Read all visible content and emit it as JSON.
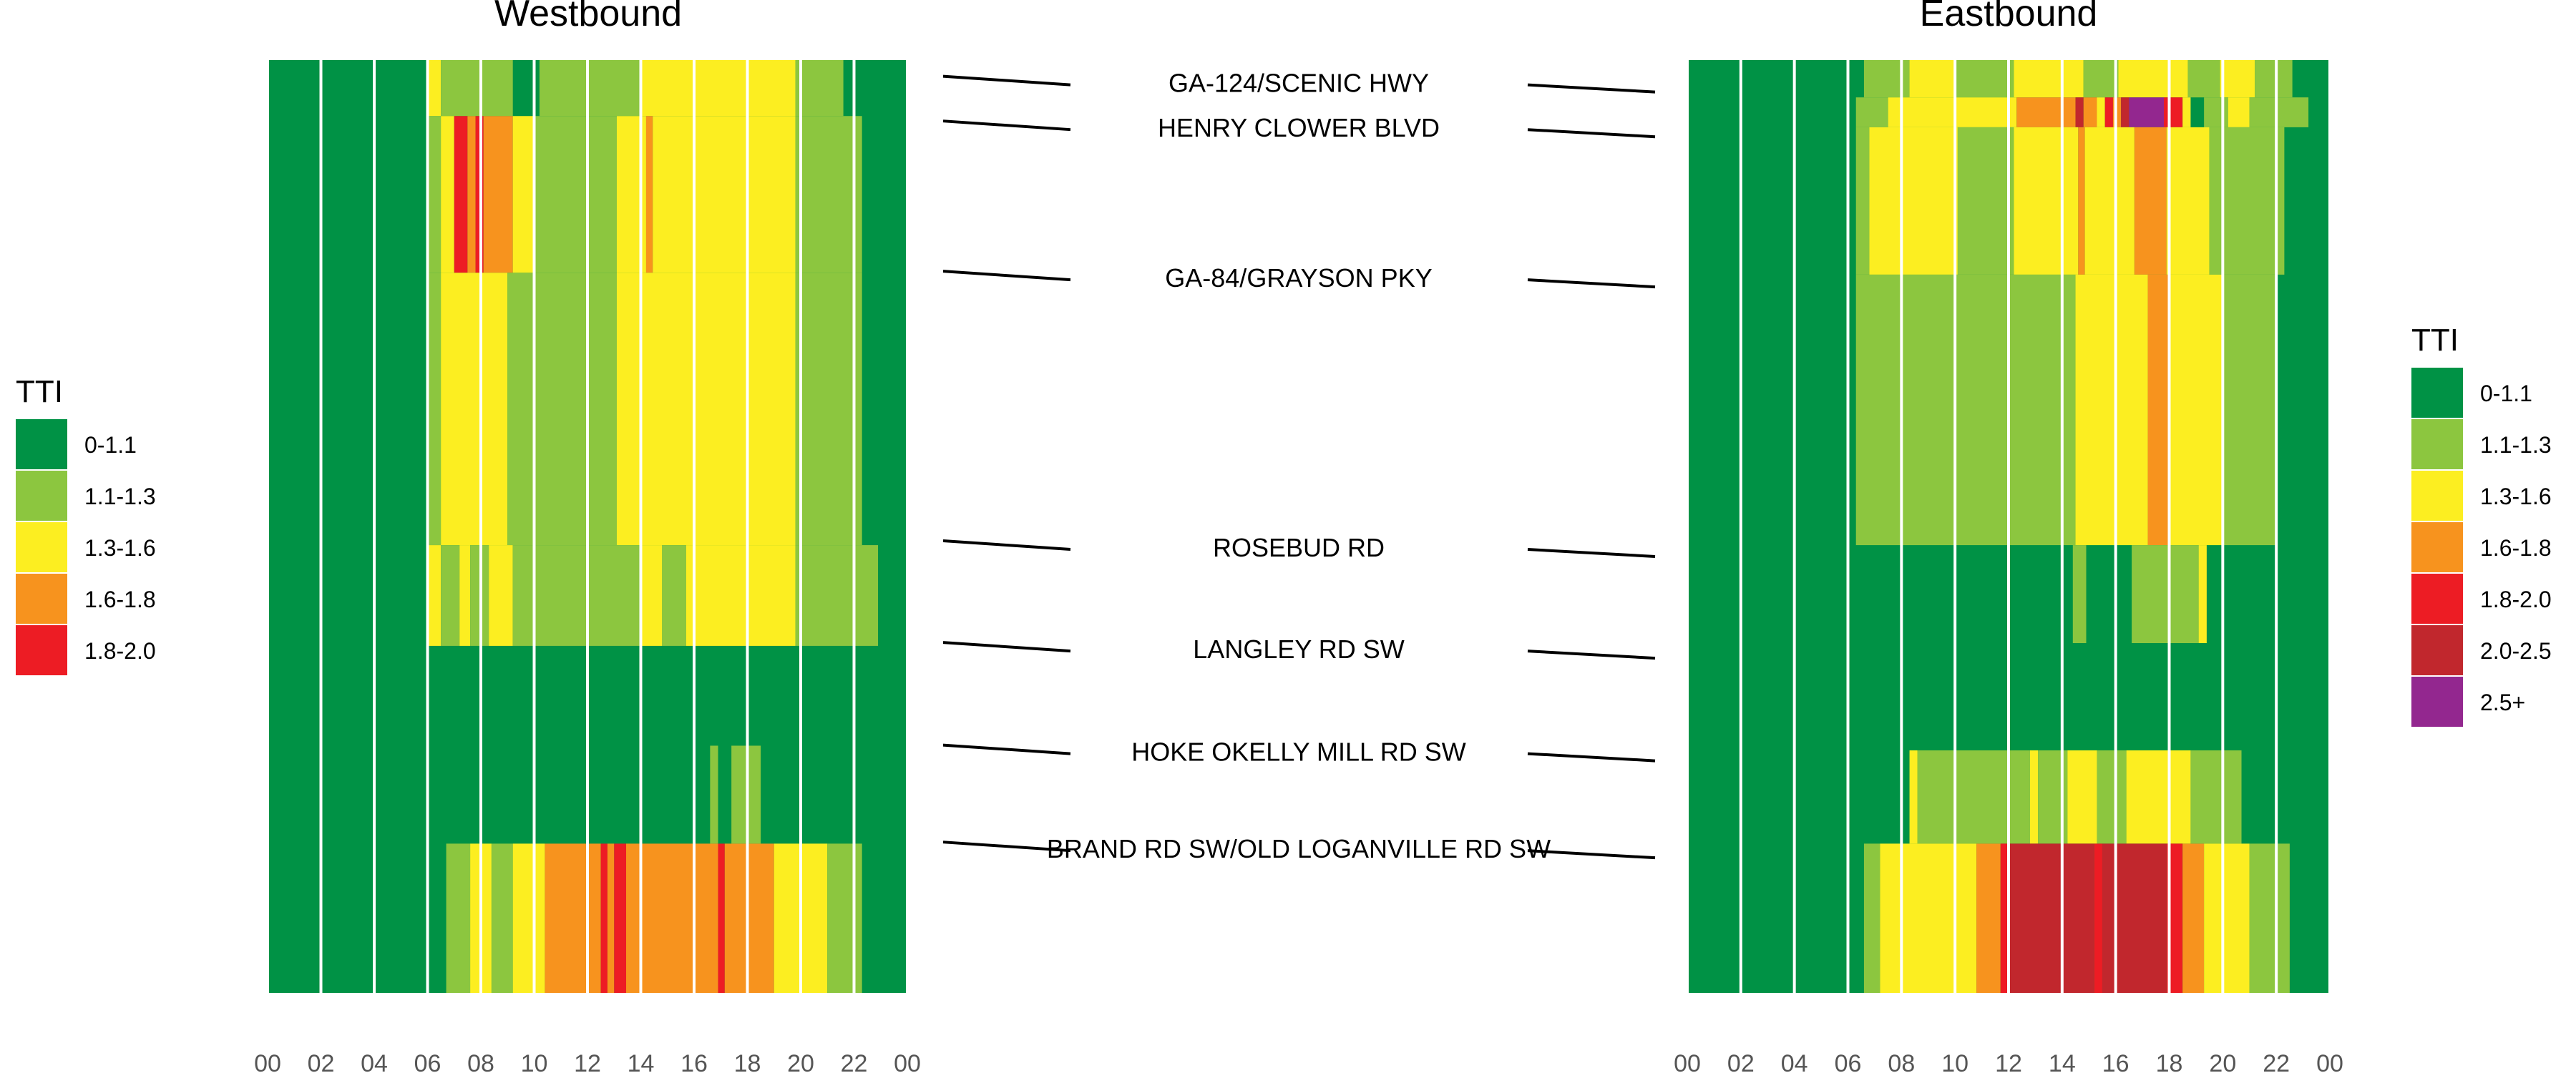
{
  "colors": {
    "0-1.1": "#009245",
    "1.1-1.3": "#8CC63F",
    "1.3-1.6": "#FCEE21",
    "1.6-1.8": "#F7931E",
    "1.8-2.0": "#ED1C24",
    "2.0-2.5": "#C1272D",
    "2.5+": "#93278F",
    "hour_line": "#ffffff",
    "leader": "#000000"
  },
  "chart_data": [
    {
      "type": "heatmap",
      "title": "Westbound",
      "legend_title": "TTI",
      "legend_items": [
        "0-1.1",
        "1.1-1.3",
        "1.3-1.6",
        "1.6-1.8",
        "1.8-2.0"
      ],
      "legend_placement": "left",
      "x_ticks": [
        "00",
        "02",
        "04",
        "06",
        "08",
        "10",
        "12",
        "14",
        "16",
        "18",
        "20",
        "22",
        "00"
      ],
      "xlim": [
        0,
        24
      ],
      "cells": [
        {
          "h0": 6.05,
          "h1": 6.5,
          "y0": 0,
          "y1": 6,
          "c": "1.3-1.6"
        },
        {
          "h0": 6.5,
          "h1": 9.2,
          "y0": 0,
          "y1": 6,
          "c": "1.1-1.3"
        },
        {
          "h0": 10.2,
          "h1": 14.0,
          "y0": 0,
          "y1": 6,
          "c": "1.1-1.3"
        },
        {
          "h0": 14.0,
          "h1": 19.8,
          "y0": 0,
          "y1": 6,
          "c": "1.3-1.6"
        },
        {
          "h0": 19.8,
          "h1": 21.6,
          "y0": 0,
          "y1": 6,
          "c": "1.1-1.3"
        },
        {
          "h0": 6.0,
          "h1": 6.5,
          "y0": 6,
          "y1": 22.8,
          "c": "1.1-1.3"
        },
        {
          "h0": 6.5,
          "h1": 7.0,
          "y0": 6,
          "y1": 22.8,
          "c": "1.3-1.6"
        },
        {
          "h0": 7.0,
          "h1": 7.5,
          "y0": 6,
          "y1": 22.8,
          "c": "1.8-2.0"
        },
        {
          "h0": 7.5,
          "h1": 7.8,
          "y0": 6,
          "y1": 22.8,
          "c": "1.6-1.8"
        },
        {
          "h0": 7.8,
          "h1": 8.1,
          "y0": 6,
          "y1": 22.8,
          "c": "1.8-2.0"
        },
        {
          "h0": 8.1,
          "h1": 9.2,
          "y0": 6,
          "y1": 22.8,
          "c": "1.6-1.8"
        },
        {
          "h0": 9.2,
          "h1": 10.0,
          "y0": 6,
          "y1": 22.8,
          "c": "1.3-1.6"
        },
        {
          "h0": 10.0,
          "h1": 13.1,
          "y0": 6,
          "y1": 22.8,
          "c": "1.1-1.3"
        },
        {
          "h0": 13.1,
          "h1": 14.2,
          "y0": 6,
          "y1": 22.8,
          "c": "1.3-1.6"
        },
        {
          "h0": 14.2,
          "h1": 14.45,
          "y0": 6,
          "y1": 22.8,
          "c": "1.6-1.8"
        },
        {
          "h0": 14.45,
          "h1": 19.8,
          "y0": 6,
          "y1": 22.8,
          "c": "1.3-1.6"
        },
        {
          "h0": 19.8,
          "h1": 22.3,
          "y0": 6,
          "y1": 22.8,
          "c": "1.1-1.3"
        },
        {
          "h0": 6.0,
          "h1": 6.5,
          "y0": 22.8,
          "y1": 52,
          "c": "1.1-1.3"
        },
        {
          "h0": 6.5,
          "h1": 9.0,
          "y0": 22.8,
          "y1": 52,
          "c": "1.3-1.6"
        },
        {
          "h0": 9.0,
          "h1": 13.1,
          "y0": 22.8,
          "y1": 52,
          "c": "1.1-1.3"
        },
        {
          "h0": 13.1,
          "h1": 19.8,
          "y0": 22.8,
          "y1": 52,
          "c": "1.3-1.6"
        },
        {
          "h0": 19.8,
          "h1": 22.3,
          "y0": 22.8,
          "y1": 52,
          "c": "1.1-1.3"
        },
        {
          "h0": 6.0,
          "h1": 6.5,
          "y0": 52,
          "y1": 62.8,
          "c": "1.3-1.6"
        },
        {
          "h0": 6.5,
          "h1": 7.2,
          "y0": 52,
          "y1": 62.8,
          "c": "1.1-1.3"
        },
        {
          "h0": 7.2,
          "h1": 7.6,
          "y0": 52,
          "y1": 62.8,
          "c": "1.3-1.6"
        },
        {
          "h0": 7.6,
          "h1": 8.3,
          "y0": 52,
          "y1": 62.8,
          "c": "1.1-1.3"
        },
        {
          "h0": 8.3,
          "h1": 9.2,
          "y0": 52,
          "y1": 62.8,
          "c": "1.3-1.6"
        },
        {
          "h0": 9.2,
          "h1": 14.0,
          "y0": 52,
          "y1": 62.8,
          "c": "1.1-1.3"
        },
        {
          "h0": 14.0,
          "h1": 14.8,
          "y0": 52,
          "y1": 62.8,
          "c": "1.3-1.6"
        },
        {
          "h0": 14.8,
          "h1": 15.7,
          "y0": 52,
          "y1": 62.8,
          "c": "1.1-1.3"
        },
        {
          "h0": 15.7,
          "h1": 19.8,
          "y0": 52,
          "y1": 62.8,
          "c": "1.3-1.6"
        },
        {
          "h0": 19.8,
          "h1": 22.9,
          "y0": 52,
          "y1": 62.8,
          "c": "1.1-1.3"
        },
        {
          "h0": 16.6,
          "h1": 16.9,
          "y0": 73.5,
          "y1": 84,
          "c": "1.1-1.3"
        },
        {
          "h0": 17.4,
          "h1": 18.5,
          "y0": 73.5,
          "y1": 84,
          "c": "1.1-1.3"
        },
        {
          "h0": 6.7,
          "h1": 7.6,
          "y0": 84,
          "y1": 100,
          "c": "1.1-1.3"
        },
        {
          "h0": 7.6,
          "h1": 8.4,
          "y0": 84,
          "y1": 100,
          "c": "1.3-1.6"
        },
        {
          "h0": 8.4,
          "h1": 9.2,
          "y0": 84,
          "y1": 100,
          "c": "1.1-1.3"
        },
        {
          "h0": 9.2,
          "h1": 10.4,
          "y0": 84,
          "y1": 100,
          "c": "1.3-1.6"
        },
        {
          "h0": 10.4,
          "h1": 12.5,
          "y0": 84,
          "y1": 100,
          "c": "1.6-1.8"
        },
        {
          "h0": 12.5,
          "h1": 12.75,
          "y0": 84,
          "y1": 100,
          "c": "1.8-2.0"
        },
        {
          "h0": 12.75,
          "h1": 13.0,
          "y0": 84,
          "y1": 100,
          "c": "1.6-1.8"
        },
        {
          "h0": 13.0,
          "h1": 13.45,
          "y0": 84,
          "y1": 100,
          "c": "1.8-2.0"
        },
        {
          "h0": 13.45,
          "h1": 16.9,
          "y0": 84,
          "y1": 100,
          "c": "1.6-1.8"
        },
        {
          "h0": 16.9,
          "h1": 17.15,
          "y0": 84,
          "y1": 100,
          "c": "1.8-2.0"
        },
        {
          "h0": 17.15,
          "h1": 19.0,
          "y0": 84,
          "y1": 100,
          "c": "1.6-1.8"
        },
        {
          "h0": 19.0,
          "h1": 21.0,
          "y0": 84,
          "y1": 100,
          "c": "1.3-1.6"
        },
        {
          "h0": 21.0,
          "h1": 22.3,
          "y0": 84,
          "y1": 100,
          "c": "1.1-1.3"
        }
      ]
    },
    {
      "type": "heatmap",
      "title": "Eastbound",
      "legend_title": "TTI",
      "legend_items": [
        "0-1.1",
        "1.1-1.3",
        "1.3-1.6",
        "1.6-1.8",
        "1.8-2.0",
        "2.0-2.5",
        "2.5+"
      ],
      "legend_placement": "right",
      "x_ticks": [
        "00",
        "02",
        "04",
        "06",
        "08",
        "10",
        "12",
        "14",
        "16",
        "18",
        "20",
        "22",
        "00"
      ],
      "xlim": [
        0,
        24
      ],
      "cells": [
        {
          "h0": 6.6,
          "h1": 8.3,
          "y0": 0,
          "y1": 4,
          "c": "1.1-1.3"
        },
        {
          "h0": 8.3,
          "h1": 10.0,
          "y0": 0,
          "y1": 4,
          "c": "1.3-1.6"
        },
        {
          "h0": 10.0,
          "h1": 12.2,
          "y0": 0,
          "y1": 4,
          "c": "1.1-1.3"
        },
        {
          "h0": 12.2,
          "h1": 14.8,
          "y0": 0,
          "y1": 4,
          "c": "1.3-1.6"
        },
        {
          "h0": 14.8,
          "h1": 16.1,
          "y0": 0,
          "y1": 4,
          "c": "1.1-1.3"
        },
        {
          "h0": 16.1,
          "h1": 18.7,
          "y0": 0,
          "y1": 4,
          "c": "1.3-1.6"
        },
        {
          "h0": 18.7,
          "h1": 19.9,
          "y0": 0,
          "y1": 4,
          "c": "1.1-1.3"
        },
        {
          "h0": 19.9,
          "h1": 21.2,
          "y0": 0,
          "y1": 4,
          "c": "1.3-1.6"
        },
        {
          "h0": 21.2,
          "h1": 22.6,
          "y0": 0,
          "y1": 4,
          "c": "1.1-1.3"
        },
        {
          "h0": 6.3,
          "h1": 7.5,
          "y0": 4,
          "y1": 7.2,
          "c": "1.1-1.3"
        },
        {
          "h0": 7.5,
          "h1": 12.3,
          "y0": 4,
          "y1": 7.2,
          "c": "1.3-1.6"
        },
        {
          "h0": 12.3,
          "h1": 14.5,
          "y0": 4,
          "y1": 7.2,
          "c": "1.6-1.8"
        },
        {
          "h0": 14.5,
          "h1": 14.8,
          "y0": 4,
          "y1": 7.2,
          "c": "2.0-2.5"
        },
        {
          "h0": 14.8,
          "h1": 15.3,
          "y0": 4,
          "y1": 7.2,
          "c": "1.6-1.8"
        },
        {
          "h0": 15.3,
          "h1": 15.6,
          "y0": 4,
          "y1": 7.2,
          "c": "1.3-1.6"
        },
        {
          "h0": 15.6,
          "h1": 15.9,
          "y0": 4,
          "y1": 7.2,
          "c": "1.8-2.0"
        },
        {
          "h0": 15.9,
          "h1": 16.2,
          "y0": 4,
          "y1": 7.2,
          "c": "1.6-1.8"
        },
        {
          "h0": 16.2,
          "h1": 16.5,
          "y0": 4,
          "y1": 7.2,
          "c": "2.0-2.5"
        },
        {
          "h0": 16.5,
          "h1": 17.8,
          "y0": 4,
          "y1": 7.2,
          "c": "2.5+"
        },
        {
          "h0": 17.8,
          "h1": 18.5,
          "y0": 4,
          "y1": 7.2,
          "c": "1.8-2.0"
        },
        {
          "h0": 18.5,
          "h1": 18.8,
          "y0": 4,
          "y1": 7.2,
          "c": "1.3-1.6"
        },
        {
          "h0": 19.3,
          "h1": 20.2,
          "y0": 4,
          "y1": 7.2,
          "c": "1.1-1.3"
        },
        {
          "h0": 20.2,
          "h1": 21.0,
          "y0": 4,
          "y1": 7.2,
          "c": "1.3-1.6"
        },
        {
          "h0": 21.0,
          "h1": 23.2,
          "y0": 4,
          "y1": 7.2,
          "c": "1.1-1.3"
        },
        {
          "h0": 6.3,
          "h1": 6.8,
          "y0": 7.2,
          "y1": 23,
          "c": "1.1-1.3"
        },
        {
          "h0": 6.8,
          "h1": 10.1,
          "y0": 7.2,
          "y1": 23,
          "c": "1.3-1.6"
        },
        {
          "h0": 10.1,
          "h1": 12.2,
          "y0": 7.2,
          "y1": 23,
          "c": "1.1-1.3"
        },
        {
          "h0": 12.2,
          "h1": 14.6,
          "y0": 7.2,
          "y1": 23,
          "c": "1.3-1.6"
        },
        {
          "h0": 14.6,
          "h1": 14.85,
          "y0": 7.2,
          "y1": 23,
          "c": "1.6-1.8"
        },
        {
          "h0": 14.85,
          "h1": 16.7,
          "y0": 7.2,
          "y1": 23,
          "c": "1.3-1.6"
        },
        {
          "h0": 16.7,
          "h1": 17.9,
          "y0": 7.2,
          "y1": 23,
          "c": "1.6-1.8"
        },
        {
          "h0": 17.9,
          "h1": 19.5,
          "y0": 7.2,
          "y1": 23,
          "c": "1.3-1.6"
        },
        {
          "h0": 19.5,
          "h1": 22.3,
          "y0": 7.2,
          "y1": 23,
          "c": "1.1-1.3"
        },
        {
          "h0": 6.3,
          "h1": 14.5,
          "y0": 23,
          "y1": 52,
          "c": "1.1-1.3"
        },
        {
          "h0": 14.5,
          "h1": 17.2,
          "y0": 23,
          "y1": 52,
          "c": "1.3-1.6"
        },
        {
          "h0": 17.2,
          "h1": 18.0,
          "y0": 23,
          "y1": 52,
          "c": "1.6-1.8"
        },
        {
          "h0": 18.0,
          "h1": 20.0,
          "y0": 23,
          "y1": 52,
          "c": "1.3-1.6"
        },
        {
          "h0": 20.0,
          "h1": 22.0,
          "y0": 23,
          "y1": 52,
          "c": "1.1-1.3"
        },
        {
          "h0": 14.4,
          "h1": 14.9,
          "y0": 52,
          "y1": 62.5,
          "c": "1.1-1.3"
        },
        {
          "h0": 16.6,
          "h1": 19.1,
          "y0": 52,
          "y1": 62.5,
          "c": "1.1-1.3"
        },
        {
          "h0": 19.1,
          "h1": 19.4,
          "y0": 52,
          "y1": 62.5,
          "c": "1.3-1.6"
        },
        {
          "h0": 8.3,
          "h1": 8.6,
          "y0": 74,
          "y1": 84,
          "c": "1.3-1.6"
        },
        {
          "h0": 8.6,
          "h1": 12.8,
          "y0": 74,
          "y1": 84,
          "c": "1.1-1.3"
        },
        {
          "h0": 12.8,
          "h1": 13.1,
          "y0": 74,
          "y1": 84,
          "c": "1.3-1.6"
        },
        {
          "h0": 13.1,
          "h1": 14.2,
          "y0": 74,
          "y1": 84,
          "c": "1.1-1.3"
        },
        {
          "h0": 14.2,
          "h1": 15.3,
          "y0": 74,
          "y1": 84,
          "c": "1.3-1.6"
        },
        {
          "h0": 15.3,
          "h1": 16.4,
          "y0": 74,
          "y1": 84,
          "c": "1.1-1.3"
        },
        {
          "h0": 16.4,
          "h1": 18.8,
          "y0": 74,
          "y1": 84,
          "c": "1.3-1.6"
        },
        {
          "h0": 18.8,
          "h1": 20.7,
          "y0": 74,
          "y1": 84,
          "c": "1.1-1.3"
        },
        {
          "h0": 6.6,
          "h1": 7.2,
          "y0": 84,
          "y1": 100,
          "c": "1.1-1.3"
        },
        {
          "h0": 7.2,
          "h1": 10.8,
          "y0": 84,
          "y1": 100,
          "c": "1.3-1.6"
        },
        {
          "h0": 10.8,
          "h1": 11.7,
          "y0": 84,
          "y1": 100,
          "c": "1.6-1.8"
        },
        {
          "h0": 11.7,
          "h1": 12.0,
          "y0": 84,
          "y1": 100,
          "c": "1.8-2.0"
        },
        {
          "h0": 12.0,
          "h1": 15.2,
          "y0": 84,
          "y1": 100,
          "c": "2.0-2.5"
        },
        {
          "h0": 15.2,
          "h1": 15.5,
          "y0": 84,
          "y1": 100,
          "c": "1.8-2.0"
        },
        {
          "h0": 15.5,
          "h1": 17.9,
          "y0": 84,
          "y1": 100,
          "c": "2.0-2.5"
        },
        {
          "h0": 17.9,
          "h1": 18.5,
          "y0": 84,
          "y1": 100,
          "c": "1.8-2.0"
        },
        {
          "h0": 18.5,
          "h1": 19.3,
          "y0": 84,
          "y1": 100,
          "c": "1.6-1.8"
        },
        {
          "h0": 19.3,
          "h1": 21.0,
          "y0": 84,
          "y1": 100,
          "c": "1.3-1.6"
        },
        {
          "h0": 21.0,
          "h1": 22.5,
          "y0": 84,
          "y1": 100,
          "c": "1.1-1.3"
        }
      ]
    }
  ],
  "road_labels": [
    {
      "name": "GA-124/SCENIC HWY",
      "y": 2.5
    },
    {
      "name": "HENRY CLOWER BLVD",
      "y": 7.3
    },
    {
      "name": "GA-84/GRAYSON PKY",
      "y": 23.4
    },
    {
      "name": "ROSEBUD RD",
      "y": 52.3
    },
    {
      "name": "LANGLEY RD SW",
      "y": 63.2
    },
    {
      "name": "HOKE OKELLY MILL RD SW",
      "y": 74.2
    },
    {
      "name": "BRAND RD SW/OLD LOGANVILLE RD SW",
      "y": 84.6
    }
  ]
}
